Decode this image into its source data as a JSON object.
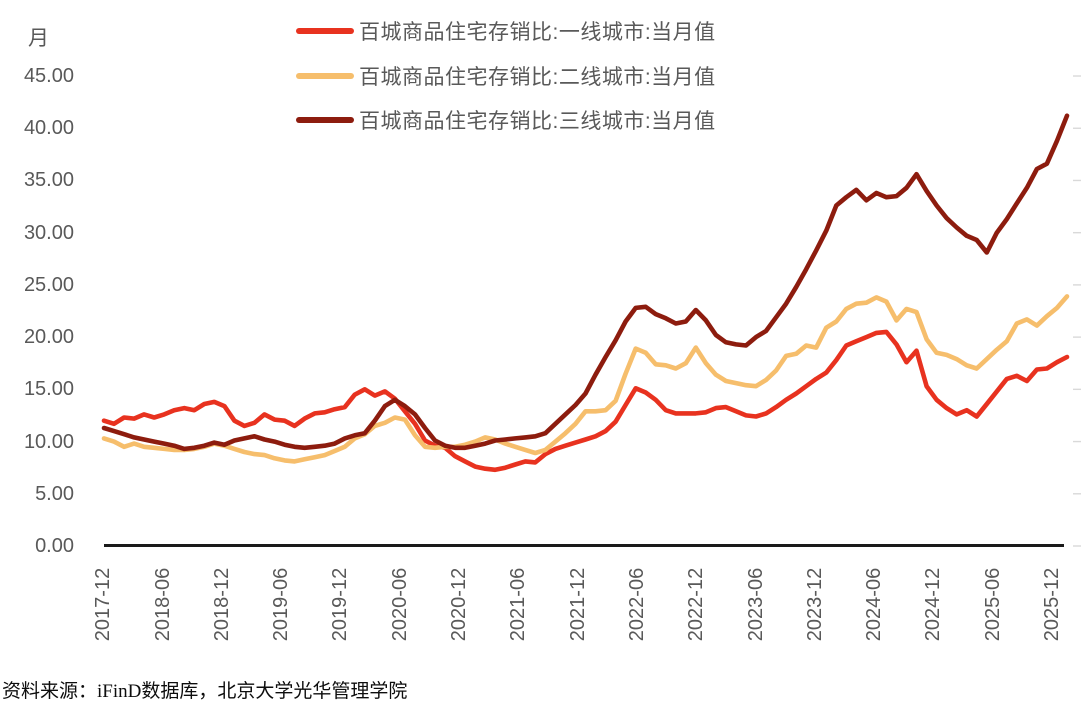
{
  "page": {
    "background": "#ffffff"
  },
  "y_axis": {
    "unit": "月",
    "tick_labels": [
      "45.00",
      "40.00",
      "35.00",
      "30.00",
      "25.00",
      "20.00",
      "15.00",
      "10.00",
      "5.00",
      "0.00"
    ],
    "tick_values": [
      45,
      40,
      35,
      30,
      25,
      20,
      15,
      10,
      5,
      0
    ]
  },
  "x_axis": {
    "tick_labels": [
      "2017-12",
      "2018-06",
      "2018-12",
      "2019-06",
      "2019-12",
      "2020-06",
      "2020-12",
      "2021-06",
      "2021-12",
      "2022-06",
      "2022-12",
      "2023-06",
      "2023-12",
      "2024-06",
      "2024-12",
      "2025-06",
      "2025-12"
    ]
  },
  "source": {
    "text": "资料来源：iFinD数据库，北京大学光华管理学院"
  },
  "colors": {
    "axis_line": "#1a1a1a",
    "axis_label": "#595959",
    "right_tick": "#d9d9d9"
  },
  "chart_data": {
    "type": "line",
    "title": "",
    "xlabel": "",
    "ylabel": "月",
    "ylim": [
      0,
      45
    ],
    "y_step": 5,
    "grid": false,
    "legend_position": "top",
    "x_start": "2017-12",
    "x_end": "2025-12",
    "x_freq": "monthly",
    "series": [
      {
        "name": "百城商品住宅存销比:一线城市:当月值",
        "color": "#e8321f",
        "values": [
          12.0,
          11.7,
          12.3,
          12.2,
          12.6,
          12.3,
          12.6,
          13.0,
          13.2,
          13.0,
          13.6,
          13.8,
          13.4,
          12.0,
          11.5,
          11.8,
          12.6,
          12.1,
          12.0,
          11.5,
          12.2,
          12.7,
          12.8,
          13.1,
          13.3,
          14.5,
          15.0,
          14.4,
          14.8,
          14.1,
          12.9,
          11.7,
          10.1,
          9.6,
          9.4,
          8.6,
          8.1,
          7.6,
          7.4,
          7.3,
          7.5,
          7.8,
          8.1,
          8.0,
          8.8,
          9.3,
          9.6,
          9.9,
          10.2,
          10.5,
          11.0,
          11.9,
          13.5,
          15.1,
          14.7,
          14.0,
          13.0,
          12.7,
          12.7,
          12.7,
          12.8,
          13.2,
          13.3,
          12.9,
          12.5,
          12.4,
          12.7,
          13.3,
          14.0,
          14.6,
          15.3,
          16.0,
          16.6,
          17.8,
          19.2,
          19.6,
          20.0,
          20.4,
          20.5,
          19.3,
          17.6,
          18.7,
          15.3,
          14.0,
          13.2,
          12.6,
          13.0,
          12.4,
          13.6,
          14.8,
          16.0,
          16.3,
          15.8,
          16.9,
          17.0,
          17.6,
          18.1
        ]
      },
      {
        "name": "百城商品住宅存销比:二线城市:当月值",
        "color": "#f6be6c",
        "values": [
          10.3,
          10.0,
          9.5,
          9.8,
          9.5,
          9.4,
          9.3,
          9.2,
          9.2,
          9.3,
          9.5,
          9.8,
          9.6,
          9.3,
          9.0,
          8.8,
          8.7,
          8.4,
          8.2,
          8.1,
          8.3,
          8.5,
          8.7,
          9.1,
          9.5,
          10.3,
          10.7,
          11.5,
          11.8,
          12.3,
          12.1,
          10.6,
          9.5,
          9.4,
          9.5,
          9.5,
          9.7,
          10.0,
          10.4,
          10.2,
          9.8,
          9.5,
          9.2,
          8.9,
          9.2,
          10.0,
          10.8,
          11.7,
          12.9,
          12.9,
          13.0,
          13.9,
          16.5,
          18.9,
          18.5,
          17.4,
          17.3,
          17.0,
          17.5,
          19.0,
          17.5,
          16.4,
          15.8,
          15.6,
          15.4,
          15.3,
          15.9,
          16.8,
          18.2,
          18.4,
          19.2,
          19.0,
          20.9,
          21.5,
          22.7,
          23.2,
          23.3,
          23.8,
          23.4,
          21.6,
          22.7,
          22.4,
          19.8,
          18.5,
          18.3,
          17.9,
          17.3,
          17.0,
          17.9,
          18.8,
          19.6,
          21.3,
          21.7,
          21.1,
          22.0,
          22.8,
          23.9
        ]
      },
      {
        "name": "百城商品住宅存销比:三线城市:当月值",
        "color": "#8d1c0e",
        "values": [
          11.3,
          11.0,
          10.7,
          10.4,
          10.2,
          10.0,
          9.8,
          9.6,
          9.3,
          9.4,
          9.6,
          9.9,
          9.7,
          10.1,
          10.3,
          10.5,
          10.2,
          10.0,
          9.7,
          9.5,
          9.4,
          9.5,
          9.6,
          9.8,
          10.3,
          10.6,
          10.8,
          12.0,
          13.4,
          14.0,
          13.4,
          12.6,
          11.3,
          10.1,
          9.6,
          9.4,
          9.4,
          9.6,
          9.8,
          10.1,
          10.2,
          10.3,
          10.4,
          10.5,
          10.8,
          11.7,
          12.6,
          13.5,
          14.6,
          16.4,
          18.1,
          19.7,
          21.5,
          22.8,
          22.9,
          22.2,
          21.8,
          21.3,
          21.5,
          22.6,
          21.6,
          20.2,
          19.5,
          19.3,
          19.2,
          20.0,
          20.6,
          21.9,
          23.2,
          24.8,
          26.5,
          28.3,
          30.2,
          32.6,
          33.4,
          34.1,
          33.1,
          33.8,
          33.4,
          33.5,
          34.3,
          35.6,
          34.0,
          32.6,
          31.4,
          30.5,
          29.7,
          29.3,
          28.1,
          30.0,
          31.3,
          32.8,
          34.3,
          36.1,
          36.6,
          38.8,
          41.2
        ]
      }
    ]
  }
}
